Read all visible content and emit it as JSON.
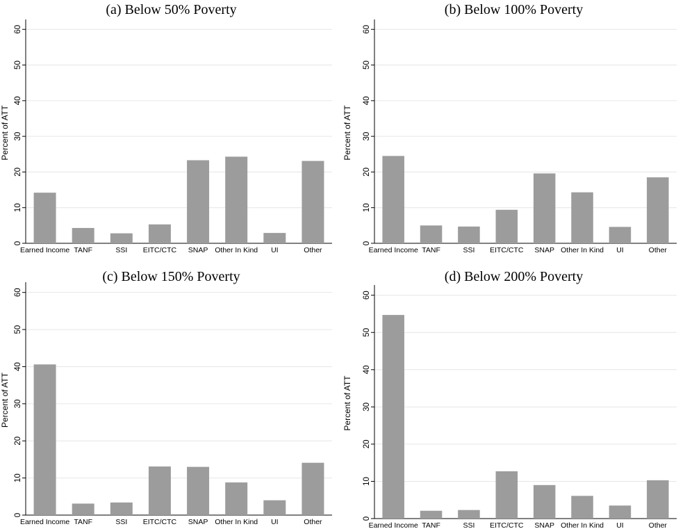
{
  "chart_data": [
    {
      "type": "bar",
      "title": "(a) Below 50% Poverty",
      "ylabel": "Percent of ATT",
      "ylim": [
        0,
        62
      ],
      "yticks": [
        0,
        10,
        20,
        30,
        40,
        50,
        60
      ],
      "categories": [
        "Earned Income",
        "TANF",
        "SSI",
        "EITC/CTC",
        "SNAP",
        "Other In Kind",
        "UI",
        "Other"
      ],
      "values": [
        14.2,
        4.3,
        2.8,
        5.3,
        23.3,
        24.3,
        2.9,
        23.1
      ],
      "grid": true
    },
    {
      "type": "bar",
      "title": "(b) Below 100% Poverty",
      "ylabel": "Percent of ATT",
      "ylim": [
        0,
        62
      ],
      "yticks": [
        0,
        10,
        20,
        30,
        40,
        50,
        60
      ],
      "categories": [
        "Earned Income",
        "TANF",
        "SSI",
        "EITC/CTC",
        "SNAP",
        "Other In Kind",
        "UI",
        "Other"
      ],
      "values": [
        24.5,
        5.0,
        4.7,
        9.4,
        19.6,
        14.3,
        4.6,
        18.5
      ],
      "grid": true
    },
    {
      "type": "bar",
      "title": "(c) Below 150% Poverty",
      "ylabel": "Percent of ATT",
      "ylim": [
        0,
        62
      ],
      "yticks": [
        0,
        10,
        20,
        30,
        40,
        50,
        60
      ],
      "categories": [
        "Earned Income",
        "TANF",
        "SSI",
        "EITC/CTC",
        "SNAP",
        "Other In Kind",
        "UI",
        "Other"
      ],
      "values": [
        40.6,
        3.1,
        3.4,
        13.1,
        13.0,
        8.8,
        4.0,
        14.1
      ],
      "grid": true
    },
    {
      "type": "bar",
      "title": "(d) Below 200% Poverty",
      "ylabel": "Percent of ATT",
      "ylim": [
        0,
        62
      ],
      "yticks": [
        0,
        10,
        20,
        30,
        40,
        50,
        60
      ],
      "categories": [
        "Earned Income",
        "TANF",
        "SSI",
        "EITC/CTC",
        "SNAP",
        "Other In Kind",
        "UI",
        "Other"
      ],
      "values": [
        54.7,
        2.1,
        2.3,
        12.7,
        9.0,
        6.1,
        3.5,
        10.3
      ],
      "grid": true
    }
  ]
}
